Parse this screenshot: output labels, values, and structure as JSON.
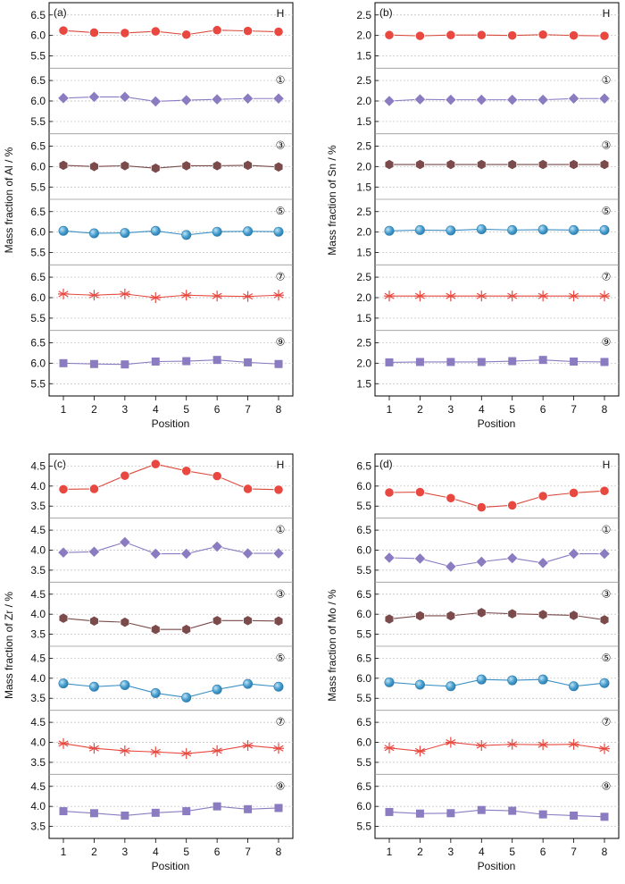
{
  "chart_data": [
    {
      "type": "line",
      "panel_label": "(a)",
      "ylabel": "Mass fraction of Al / %",
      "xlabel": "Position",
      "x": [
        1,
        2,
        3,
        4,
        5,
        6,
        7,
        8
      ],
      "x_tick_labels": [
        "1",
        "2",
        "3",
        "4",
        "5",
        "6",
        "7",
        "8"
      ],
      "y_ticks": [
        5.5,
        6.0,
        6.5
      ],
      "y_tick_labels": [
        "5.5",
        "6.0",
        "6.5"
      ],
      "ylim": [
        5.2,
        6.8
      ],
      "series": [
        {
          "name": "H",
          "values": [
            6.12,
            6.07,
            6.06,
            6.1,
            6.02,
            6.13,
            6.11,
            6.09
          ]
        },
        {
          "name": "①",
          "values": [
            6.07,
            6.1,
            6.1,
            5.99,
            6.02,
            6.04,
            6.06,
            6.06
          ]
        },
        {
          "name": "③",
          "values": [
            6.03,
            6.0,
            6.02,
            5.96,
            6.02,
            6.02,
            6.03,
            5.99
          ]
        },
        {
          "name": "⑤",
          "values": [
            6.03,
            5.97,
            5.98,
            6.03,
            5.93,
            6.01,
            6.02,
            6.01
          ]
        },
        {
          "name": "⑦",
          "values": [
            6.09,
            6.06,
            6.09,
            6.0,
            6.06,
            6.04,
            6.03,
            6.06
          ]
        },
        {
          "name": "⑨",
          "values": [
            6.0,
            5.98,
            5.97,
            6.04,
            6.05,
            6.08,
            6.02,
            5.98
          ]
        }
      ]
    },
    {
      "type": "line",
      "panel_label": "(b)",
      "ylabel": "Mass fraction of Sn / %",
      "xlabel": "Position",
      "x": [
        1,
        2,
        3,
        4,
        5,
        6,
        7,
        8
      ],
      "x_tick_labels": [
        "1",
        "2",
        "3",
        "4",
        "5",
        "6",
        "7",
        "8"
      ],
      "y_ticks": [
        1.5,
        2.0,
        2.5
      ],
      "y_tick_labels": [
        "1.5",
        "2.0",
        "2.5"
      ],
      "ylim": [
        1.2,
        2.8
      ],
      "series": [
        {
          "name": "H",
          "values": [
            2.01,
            1.99,
            2.01,
            2.01,
            2.0,
            2.02,
            2.0,
            1.99
          ]
        },
        {
          "name": "①",
          "values": [
            2.0,
            2.04,
            2.03,
            2.03,
            2.03,
            2.03,
            2.06,
            2.06
          ]
        },
        {
          "name": "③",
          "values": [
            2.05,
            2.05,
            2.05,
            2.05,
            2.05,
            2.05,
            2.05,
            2.05
          ]
        },
        {
          "name": "⑤",
          "values": [
            2.03,
            2.05,
            2.04,
            2.07,
            2.05,
            2.06,
            2.05,
            2.05
          ]
        },
        {
          "name": "⑦",
          "values": [
            2.04,
            2.04,
            2.04,
            2.04,
            2.04,
            2.04,
            2.04,
            2.04
          ]
        },
        {
          "name": "⑨",
          "values": [
            2.02,
            2.03,
            2.03,
            2.03,
            2.05,
            2.08,
            2.04,
            2.03
          ]
        }
      ]
    },
    {
      "type": "line",
      "panel_label": "(c)",
      "ylabel": "Mass fraction of Zr / %",
      "xlabel": "Position",
      "x": [
        1,
        2,
        3,
        4,
        5,
        6,
        7,
        8
      ],
      "x_tick_labels": [
        "1",
        "2",
        "3",
        "4",
        "5",
        "6",
        "7",
        "8"
      ],
      "y_ticks": [
        3.5,
        4.0,
        4.5
      ],
      "y_tick_labels": [
        "3.5",
        "4.0",
        "4.5"
      ],
      "ylim": [
        3.2,
        4.8
      ],
      "series": [
        {
          "name": "H",
          "values": [
            3.92,
            3.93,
            4.26,
            4.55,
            4.38,
            4.25,
            3.93,
            3.91
          ]
        },
        {
          "name": "①",
          "values": [
            3.94,
            3.96,
            4.2,
            3.91,
            3.91,
            4.09,
            3.92,
            3.92
          ]
        },
        {
          "name": "③",
          "values": [
            3.9,
            3.83,
            3.8,
            3.62,
            3.62,
            3.84,
            3.84,
            3.83
          ]
        },
        {
          "name": "⑤",
          "values": [
            3.87,
            3.79,
            3.83,
            3.63,
            3.52,
            3.72,
            3.86,
            3.79
          ]
        },
        {
          "name": "⑦",
          "values": [
            3.97,
            3.85,
            3.79,
            3.76,
            3.72,
            3.79,
            3.92,
            3.85
          ]
        },
        {
          "name": "⑨",
          "values": [
            3.88,
            3.83,
            3.77,
            3.84,
            3.88,
            4.0,
            3.93,
            3.96
          ]
        }
      ]
    },
    {
      "type": "line",
      "panel_label": "(d)",
      "ylabel": "Mass fraction of Mo / %",
      "xlabel": "Position",
      "x": [
        1,
        2,
        3,
        4,
        5,
        6,
        7,
        8
      ],
      "x_tick_labels": [
        "1",
        "2",
        "3",
        "4",
        "5",
        "6",
        "7",
        "8"
      ],
      "y_ticks": [
        5.5,
        6.0,
        6.5
      ],
      "y_tick_labels": [
        "5.5",
        "6.0",
        "6.5"
      ],
      "ylim": [
        5.2,
        6.8
      ],
      "series": [
        {
          "name": "H",
          "values": [
            5.84,
            5.85,
            5.7,
            5.47,
            5.52,
            5.75,
            5.83,
            5.88
          ]
        },
        {
          "name": "①",
          "values": [
            5.81,
            5.79,
            5.59,
            5.71,
            5.8,
            5.68,
            5.91,
            5.91
          ]
        },
        {
          "name": "③",
          "values": [
            5.88,
            5.96,
            5.96,
            6.04,
            6.01,
            5.99,
            5.97,
            5.86
          ]
        },
        {
          "name": "⑤",
          "values": [
            5.9,
            5.84,
            5.8,
            5.97,
            5.95,
            5.97,
            5.8,
            5.88
          ]
        },
        {
          "name": "⑦",
          "values": [
            5.86,
            5.78,
            6.0,
            5.92,
            5.95,
            5.94,
            5.95,
            5.84
          ]
        },
        {
          "name": "⑨",
          "values": [
            5.86,
            5.82,
            5.83,
            5.91,
            5.89,
            5.8,
            5.77,
            5.74
          ]
        }
      ]
    }
  ],
  "series_styles": [
    {
      "marker": "circle",
      "fill": "#e8483f",
      "line": "#d94a3c"
    },
    {
      "marker": "diamond",
      "fill": "#8b7cc2",
      "line": "#8b7cc2"
    },
    {
      "marker": "hexagon",
      "fill": "#7b4a4a",
      "line": "#7b4a4a"
    },
    {
      "marker": "sphere",
      "fill": "#4aa0d0",
      "line": "#3a8fc4"
    },
    {
      "marker": "asterisk",
      "fill": "#e8483f",
      "line": "#e8483f"
    },
    {
      "marker": "square",
      "fill": "#8b7cc2",
      "line": "#8b7cc2"
    }
  ]
}
